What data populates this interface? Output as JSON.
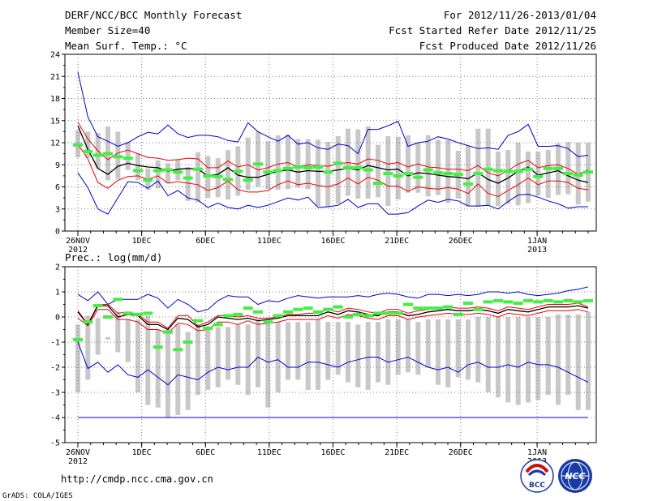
{
  "header": {
    "title": "DERF/NCC/BCC Monthly Forecast",
    "member_size": "Member Size=40",
    "variable": "Mean Surf. Temp.: °C",
    "period": "For 2012/11/26-2013/01/04",
    "started": "Fcst Started Refer Date 2012/11/25",
    "produced": "Fcst Produced Date 2012/11/26"
  },
  "footer": {
    "url": "http://cmdp.ncc.cma.gov.cn",
    "credit": "GrADS: COLA/IGES",
    "logo_bcc": "BCC",
    "logo_ncc": "NCC"
  },
  "colors": {
    "box": "#c8c8c8",
    "median": "#44ee44",
    "mean": "#000000",
    "spread": "#ee0000",
    "extreme": "#0000cc",
    "grid": "#808080"
  },
  "chart_data": [
    {
      "type": "line",
      "title": "Mean Surf. Temp.: °C",
      "x_ticks": [
        "26NOV",
        "1DEC",
        "6DEC",
        "11DEC",
        "16DEC",
        "21DEC",
        "26DEC",
        "1JAN"
      ],
      "x_year_labels": [
        {
          "tick": "26NOV",
          "label": "2012"
        },
        {
          "tick": "1JAN",
          "label": "2013"
        }
      ],
      "x_tick_days": [
        0,
        5,
        10,
        15,
        20,
        25,
        30,
        36
      ],
      "days": 40,
      "ylim": [
        0,
        24
      ],
      "y_ticks": [
        0,
        3,
        6,
        9,
        12,
        15,
        18,
        21,
        24
      ],
      "grid": true,
      "series": [
        {
          "name": "max",
          "values": [
            21.6,
            15.5,
            12.8,
            12.2,
            11.5,
            12,
            12.8,
            13.4,
            13.2,
            14.4,
            13.2,
            12.7,
            13,
            13,
            12.8,
            12.3,
            12.1,
            14.7,
            13.5,
            12.8,
            12.2,
            13,
            11.8,
            12,
            11.3,
            11.1,
            11.8,
            11.6,
            10.5,
            13.8,
            13.8,
            14.3,
            14.9,
            11.5,
            12,
            12.2,
            12.8,
            12.5,
            12,
            11.6,
            11.2,
            11.3,
            11.1,
            13,
            13.5,
            14.5,
            11.5,
            11.5,
            11.6,
            11.2,
            10.1,
            10.3
          ]
        },
        {
          "name": "upper",
          "values": [
            14.8,
            12.5,
            10.9,
            9.7,
            10.6,
            11,
            10.5,
            10,
            9.9,
            9.6,
            9.7,
            9.9,
            9.8,
            8.6,
            8.6,
            9.5,
            8.7,
            9,
            8.3,
            8.6,
            9.1,
            9.3,
            8.7,
            9,
            8.9,
            8.8,
            9.1,
            9.3,
            9.1,
            9.8,
            9.6,
            9.1,
            9.3,
            8.7,
            9.1,
            8.7,
            8.6,
            8.4,
            8.4,
            8.2,
            8.9,
            7.9,
            7.5,
            8.2,
            9.1,
            9.6,
            8.6,
            8.9,
            9,
            8.5,
            7.7,
            8.3
          ]
        },
        {
          "name": "mean",
          "values": [
            14.3,
            11.1,
            8.5,
            7.7,
            8.8,
            9.2,
            8.9,
            8.7,
            8.6,
            8.1,
            8.4,
            8.5,
            8.4,
            7.5,
            7.7,
            8.6,
            7.6,
            7.3,
            7.3,
            7.7,
            8.1,
            8.3,
            8,
            8.2,
            8.1,
            8.1,
            8.3,
            8.5,
            8.3,
            8.9,
            8.6,
            8.3,
            8.4,
            7.5,
            7.9,
            7.8,
            7.6,
            7.4,
            7.3,
            7.1,
            7.9,
            7,
            6.5,
            7.2,
            8.1,
            8.7,
            7.6,
            7.9,
            8.2,
            7.5,
            6.9,
            6.6
          ]
        },
        {
          "name": "lower",
          "values": [
            11.8,
            9.8,
            6.6,
            5.8,
            6.9,
            7.4,
            7.5,
            7,
            7.5,
            6.5,
            6.7,
            6.5,
            6.3,
            5.5,
            5.9,
            6.8,
            5.6,
            5.3,
            5.3,
            5.5,
            6.3,
            6.8,
            6.3,
            6.5,
            6.2,
            6,
            6.4,
            7.2,
            6.4,
            7.3,
            6.9,
            6.1,
            6.1,
            5.4,
            6,
            5.8,
            5.7,
            5.9,
            5.7,
            5.1,
            6.4,
            5.1,
            4.7,
            5.5,
            6.3,
            7.2,
            6.3,
            6.8,
            6.8,
            6.6,
            5.8,
            5.6
          ]
        },
        {
          "name": "min",
          "values": [
            7.9,
            5.9,
            3,
            2.3,
            4.5,
            6.7,
            6.6,
            5.8,
            6.8,
            4.8,
            5.5,
            4.5,
            4.2,
            3.2,
            3.8,
            3.2,
            3,
            3.5,
            3.2,
            3.5,
            4,
            4.5,
            4.2,
            4.6,
            3.2,
            3.3,
            3.5,
            4.3,
            3.2,
            3.7,
            3.7,
            2.3,
            2.3,
            2.5,
            3.4,
            4.2,
            3.9,
            4.3,
            4.1,
            3.4,
            3.4,
            3.5,
            3,
            4,
            4.9,
            5,
            4.6,
            4.1,
            3.7,
            3.1,
            3.3,
            3.3
          ]
        },
        {
          "name": "median",
          "values": [
            11.7,
            10.8,
            10.3,
            10.5,
            10.1,
            9.9,
            8.2,
            6.9,
            8.2,
            8.3,
            8,
            7.2,
            8.4,
            7.5,
            7.4,
            7,
            8.1,
            6.9,
            9.1,
            8,
            8.2,
            8.5,
            8.7,
            8.6,
            8.7,
            8,
            9.2,
            8.6,
            8.6,
            8.3,
            6.5,
            7.8,
            7.5,
            7.8,
            7.3,
            8.3,
            7.9,
            7.8,
            7.7,
            6.4,
            7.8,
            8.4,
            8.2,
            8.1,
            8.1,
            8.4,
            7.4,
            8.5,
            8.5,
            7.8,
            7.6,
            8
          ]
        },
        {
          "name": "box_high",
          "values": [
            13.7,
            13.5,
            13.3,
            14.2,
            13.5,
            12.1,
            10.5,
            8.5,
            9.6,
            9.2,
            9.7,
            8.7,
            10.7,
            10.2,
            9.9,
            11,
            11.5,
            12.7,
            13.5,
            12.2,
            13,
            13.1,
            12.5,
            12.5,
            12.4,
            12.1,
            12.9,
            13.9,
            13.8,
            14.2,
            11.7,
            12.9,
            12.8,
            13,
            12,
            13,
            12.4,
            12.4,
            10.9,
            11.6,
            13.9,
            13.9,
            10.8,
            11,
            12,
            10.8,
            10.8,
            11,
            11.9,
            12.1,
            12,
            12
          ]
        },
        {
          "name": "box_low",
          "values": [
            10,
            9.9,
            8.5,
            6.9,
            7.1,
            8.3,
            6.9,
            5.6,
            5.8,
            6.5,
            6.9,
            4.1,
            3.9,
            4.5,
            4.6,
            4.3,
            4.8,
            5.6,
            6,
            5.7,
            5.6,
            5.7,
            5.9,
            5.7,
            3.4,
            3.2,
            3.7,
            4.8,
            4.4,
            4.4,
            4.6,
            3.4,
            4.3,
            5.2,
            5.2,
            4.7,
            4.9,
            3.8,
            4.4,
            3.4,
            3.3,
            3.4,
            3.4,
            3.7,
            3.5,
            3.8,
            4.8,
            4.5,
            4.9,
            5,
            3.6,
            4
          ]
        }
      ]
    },
    {
      "type": "line",
      "title": "Prec.: log(mm/d)",
      "x_ticks": [
        "26NOV",
        "1DEC",
        "6DEC",
        "11DEC",
        "16DEC",
        "21DEC",
        "26DEC",
        "1JAN"
      ],
      "x_year_labels": [
        {
          "tick": "26NOV",
          "label": "2012"
        },
        {
          "tick": "1JAN",
          "label": "2013"
        }
      ],
      "x_tick_days": [
        0,
        5,
        10,
        15,
        20,
        25,
        30,
        36
      ],
      "days": 40,
      "ylim": [
        -5,
        2
      ],
      "y_ticks": [
        -5,
        -4,
        -3,
        -2,
        -1,
        0,
        1,
        2
      ],
      "grid": true,
      "series": [
        {
          "name": "max",
          "values": [
            0.9,
            0.65,
            1,
            0.5,
            0.7,
            0.7,
            0.7,
            0.9,
            0.75,
            0.35,
            0.7,
            0.5,
            0.2,
            0.3,
            0.65,
            0.85,
            0.8,
            0.8,
            0.5,
            0.65,
            0.6,
            0.75,
            0.85,
            0.8,
            0.75,
            0.8,
            0.8,
            0.8,
            0.85,
            0.8,
            0.9,
            0.95,
            0.9,
            0.8,
            0.75,
            0.9,
            0.9,
            0.85,
            0.9,
            0.85,
            0.9,
            1,
            1,
            0.95,
            1,
            0.9,
            0.85,
            0.9,
            0.95,
            1.05,
            1.1,
            1.2
          ]
        },
        {
          "name": "upper",
          "values": [
            0.25,
            -0.3,
            0.5,
            0.5,
            0.15,
            0.2,
            0.1,
            -0.2,
            -0.2,
            -0.45,
            0.05,
            0.05,
            -0.35,
            -0.2,
            0.05,
            0.05,
            0,
            0.05,
            -0.05,
            -0.05,
            0,
            0.1,
            0.1,
            0.15,
            0.15,
            0.3,
            0.2,
            0.35,
            0.3,
            0.2,
            0.15,
            0.3,
            0.3,
            0.15,
            0.25,
            0.3,
            0.35,
            0.4,
            0.35,
            0.35,
            0.4,
            0.35,
            0.25,
            0.4,
            0.35,
            0.3,
            0.4,
            0.5,
            0.5,
            0.5,
            0.55,
            0.4
          ]
        },
        {
          "name": "mean",
          "values": [
            0.2,
            -0.3,
            0.45,
            0.45,
            0,
            0.1,
            0.05,
            -0.3,
            -0.3,
            -0.5,
            -0.05,
            -0.1,
            -0.4,
            -0.3,
            0,
            -0.05,
            -0.1,
            -0.05,
            -0.15,
            -0.1,
            -0.05,
            0.05,
            0.05,
            0.05,
            0.05,
            0.2,
            0.1,
            0.25,
            0.2,
            0.1,
            0.05,
            0.2,
            0.2,
            0.05,
            0.1,
            0.2,
            0.25,
            0.3,
            0.25,
            0.25,
            0.3,
            0.25,
            0.15,
            0.3,
            0.25,
            0.2,
            0.3,
            0.4,
            0.4,
            0.4,
            0.45,
            0.35
          ]
        },
        {
          "name": "lower",
          "values": [
            -0.05,
            -0.35,
            0.3,
            0.3,
            -0.1,
            -0.1,
            -0.2,
            -0.5,
            -0.5,
            -0.65,
            -0.25,
            -0.3,
            -0.55,
            -0.5,
            -0.2,
            -0.2,
            -0.3,
            -0.15,
            -0.3,
            -0.25,
            -0.2,
            -0.1,
            -0.1,
            -0.1,
            -0.1,
            0.05,
            -0.05,
            0.1,
            0.05,
            -0.05,
            -0.1,
            0.05,
            0.05,
            -0.1,
            0,
            0.05,
            0.1,
            0.15,
            0.1,
            0.1,
            0.15,
            0.1,
            0,
            0.15,
            0.1,
            0.05,
            0.15,
            0.25,
            0.25,
            0.25,
            0.3,
            0.2
          ]
        },
        {
          "name": "min",
          "values": [
            -1,
            -2.05,
            -1.8,
            -2.2,
            -1.9,
            -2.3,
            -2.4,
            -2.1,
            -2.4,
            -2.7,
            -2.3,
            -2.4,
            -2.5,
            -2.2,
            -2.0,
            -2.1,
            -2.0,
            -2.0,
            -1.6,
            -1.8,
            -1.7,
            -2.0,
            -2.0,
            -1.8,
            -1.8,
            -1.9,
            -2.0,
            -1.8,
            -1.7,
            -1.6,
            -1.6,
            -1.8,
            -1.7,
            -1.6,
            -1.8,
            -2.0,
            -2.1,
            -2.0,
            -2.2,
            -1.9,
            -1.8,
            -2.0,
            -2.0,
            -1.9,
            -2.0,
            -1.8,
            -1.9,
            -1.9,
            -2.0,
            -2.2,
            -2.4,
            -2.6
          ]
        },
        {
          "name": "bottom",
          "values": [
            -4,
            -4,
            -4,
            -4,
            -4,
            -4,
            -4,
            -4,
            -4,
            -4,
            -4,
            -4,
            -4,
            -4,
            -4,
            -4,
            -4,
            -4,
            -4,
            -4,
            -4,
            -4,
            -4,
            -4,
            -4,
            -4,
            -4,
            -4,
            -4,
            -4,
            -4,
            -4,
            -4,
            -4,
            -4,
            -4,
            -4,
            -4,
            -4,
            -4,
            -4,
            -4,
            -4,
            -4,
            -4,
            -4,
            -4,
            -4,
            -4,
            -4,
            -4,
            -4
          ]
        },
        {
          "name": "median",
          "values": [
            -0.9,
            -0.2,
            0.45,
            0,
            0.7,
            0.15,
            0.1,
            0.15,
            -1.2,
            -0.6,
            -1.3,
            -1.0,
            -0.15,
            -0.45,
            -0.3,
            0.05,
            0.1,
            0.35,
            0.2,
            -0.2,
            0.05,
            0.2,
            0.3,
            0.35,
            0.2,
            0.3,
            0.4,
            0,
            0.1,
            0.05,
            0.15,
            0.15,
            0.15,
            0.5,
            0.35,
            0.35,
            0.35,
            0.4,
            0.1,
            0.55,
            0.3,
            0.6,
            0.65,
            0.6,
            0.55,
            0.65,
            0.6,
            0.65,
            0.6,
            0.65,
            0.6,
            0.65
          ]
        },
        {
          "name": "box_high",
          "values": [
            -0.3,
            0.05,
            -0.05,
            -0.8,
            0.2,
            -0.1,
            -0.1,
            0.05,
            -0.5,
            -0.5,
            -0.3,
            -0.6,
            -0.3,
            -0.4,
            -0.4,
            -0.4,
            -0.3,
            -0.3,
            -0.1,
            -0.2,
            -0.2,
            -0.2,
            -0.2,
            -0.2,
            -0.1,
            -0.2,
            -0.2,
            -0.2,
            -0.3,
            -0.2,
            -0.2,
            -0.1,
            -0.1,
            -0.1,
            -0.2,
            -0.1,
            -0.1,
            -0.1,
            -0.1,
            -0.1,
            0,
            0,
            0,
            0,
            0,
            0,
            0,
            0,
            0.1,
            0.1,
            0.1,
            0.2
          ]
        },
        {
          "name": "box_low",
          "values": [
            -3,
            -2.5,
            -1.5,
            -0.9,
            -1.4,
            -1.8,
            -3,
            -3.5,
            -3.6,
            -4,
            -3.9,
            -3.7,
            -3.1,
            -2.9,
            -2.8,
            -2.5,
            -2.7,
            -3.1,
            -2.8,
            -3.6,
            -3.0,
            -2.5,
            -2.5,
            -2.9,
            -2.9,
            -2.5,
            -2.3,
            -2.6,
            -2.8,
            -2.9,
            -2.6,
            -2.7,
            -2.3,
            -2.2,
            -2.3,
            -2.0,
            -2.7,
            -2.8,
            -2.4,
            -2.5,
            -2.6,
            -3.0,
            -3.2,
            -3.4,
            -3.5,
            -3.4,
            -3.3,
            -3.1,
            -3.5,
            -3.1,
            -3.7,
            -3.7
          ]
        }
      ]
    }
  ]
}
